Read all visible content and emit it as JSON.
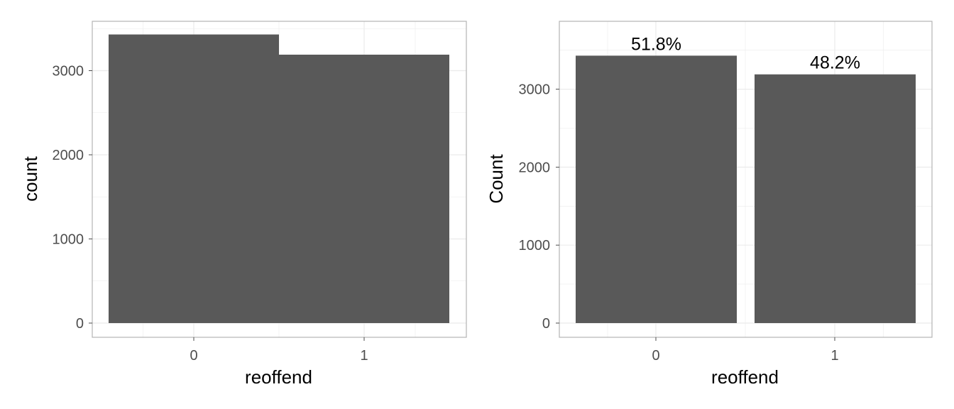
{
  "chart_data": [
    {
      "type": "bar",
      "categories": [
        "0",
        "1"
      ],
      "values": [
        3430,
        3190
      ],
      "xlabel": "reoffend",
      "ylabel": "count",
      "ylim": [
        0,
        3600
      ],
      "yticks": [
        "0",
        "1000",
        "2000",
        "3000"
      ],
      "grid": true,
      "data_labels": []
    },
    {
      "type": "bar",
      "categories": [
        "0",
        "1"
      ],
      "values": [
        3430,
        3190
      ],
      "xlabel": "reoffend",
      "ylabel": "Count",
      "ylim": [
        0,
        3600
      ],
      "yticks": [
        "0",
        "1000",
        "2000",
        "3000"
      ],
      "grid": true,
      "data_labels": [
        "51.8%",
        "48.2%"
      ]
    }
  ],
  "colors": {
    "bar": "#595959",
    "grid": "#ebebeb",
    "panel_border": "#b3b3b3"
  }
}
